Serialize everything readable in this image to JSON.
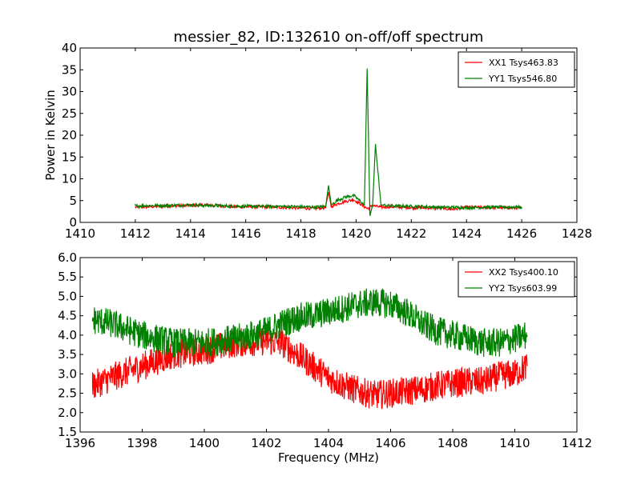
{
  "figure": {
    "title": "messier_82, ID:132610 on-off/off spectrum",
    "ylabel": "Power in Kelvin",
    "xlabel": "Frequency (MHz)"
  },
  "colors": {
    "xx": "#ff0000",
    "yy": "#008000"
  },
  "chart_data": [
    {
      "type": "line",
      "title": "messier_82, ID:132610 on-off/off spectrum",
      "xlabel": "",
      "ylabel": "Power in Kelvin",
      "xlim": [
        1410,
        1428
      ],
      "ylim": [
        0,
        40
      ],
      "xticks": [
        "1410",
        "1412",
        "1414",
        "1416",
        "1418",
        "1420",
        "1422",
        "1424",
        "1426",
        "1428"
      ],
      "yticks": [
        "0",
        "5",
        "10",
        "15",
        "20",
        "25",
        "30",
        "35",
        "40"
      ],
      "grid": false,
      "legend": "top-right",
      "series": [
        {
          "name": "XX1 Tsys463.83",
          "color": "#ff0000",
          "x": [
            1412.0,
            1413.0,
            1414.0,
            1414.8,
            1415.5,
            1416.0,
            1417.0,
            1418.0,
            1418.5,
            1418.9,
            1419.0,
            1419.1,
            1419.3,
            1419.6,
            1419.9,
            1420.1,
            1420.3,
            1420.4,
            1420.5,
            1420.6,
            1420.7,
            1420.9,
            1421.2,
            1422.0,
            1423.0,
            1423.5,
            1424.0,
            1425.0,
            1426.0
          ],
          "y": [
            3.5,
            3.7,
            3.9,
            4.0,
            3.6,
            3.6,
            3.5,
            3.3,
            3.2,
            3.4,
            7.0,
            3.6,
            4.2,
            4.8,
            5.2,
            4.5,
            3.6,
            3.2,
            3.4,
            4.0,
            3.7,
            3.5,
            3.6,
            3.4,
            3.3,
            3.0,
            3.5,
            3.4,
            3.3
          ]
        },
        {
          "name": "YY1 Tsys546.80",
          "color": "#008000",
          "x": [
            1412.0,
            1413.0,
            1414.0,
            1415.0,
            1416.0,
            1417.0,
            1418.0,
            1418.5,
            1418.9,
            1419.0,
            1419.1,
            1419.3,
            1419.6,
            1419.9,
            1420.1,
            1420.3,
            1420.4,
            1420.5,
            1420.6,
            1420.7,
            1420.9,
            1421.2,
            1422.0,
            1423.0,
            1424.0,
            1425.0,
            1426.0
          ],
          "y": [
            3.8,
            3.9,
            4.0,
            3.8,
            3.7,
            3.7,
            3.6,
            3.5,
            3.7,
            8.5,
            4.0,
            5.0,
            5.8,
            6.2,
            5.2,
            4.0,
            35.3,
            1.5,
            4.0,
            18.0,
            4.0,
            3.8,
            3.7,
            3.5,
            3.4,
            3.5,
            3.5
          ]
        }
      ]
    },
    {
      "type": "line",
      "title": "",
      "xlabel": "Frequency (MHz)",
      "ylabel": "",
      "xlim": [
        1396,
        1412
      ],
      "ylim": [
        1.5,
        6.0
      ],
      "xticks": [
        "1396",
        "1398",
        "1400",
        "1402",
        "1404",
        "1406",
        "1408",
        "1410",
        "1412"
      ],
      "yticks": [
        "1.5",
        "2.0",
        "2.5",
        "3.0",
        "3.5",
        "4.0",
        "4.5",
        "5.0",
        "5.5",
        "6.0"
      ],
      "grid": false,
      "legend": "top-right",
      "series": [
        {
          "name": "XX2 Tsys400.10",
          "color": "#ff0000",
          "x": [
            1396.4,
            1397.0,
            1398.0,
            1399.0,
            1400.0,
            1401.0,
            1402.0,
            1402.5,
            1403.0,
            1403.5,
            1404.0,
            1404.5,
            1405.0,
            1405.5,
            1406.0,
            1406.5,
            1407.0,
            1407.5,
            1408.0,
            1408.5,
            1409.0,
            1409.5,
            1410.0,
            1410.4
          ],
          "y": [
            2.7,
            2.9,
            3.2,
            3.5,
            3.6,
            3.8,
            3.85,
            3.8,
            3.5,
            3.2,
            2.9,
            2.7,
            2.55,
            2.45,
            2.5,
            2.55,
            2.6,
            2.7,
            2.75,
            2.8,
            2.8,
            2.95,
            3.0,
            3.2
          ]
        },
        {
          "name": "YY2 Tsys603.99",
          "color": "#008000",
          "x": [
            1396.4,
            1397.0,
            1398.0,
            1399.0,
            1400.0,
            1401.0,
            1402.0,
            1402.5,
            1403.0,
            1403.5,
            1404.0,
            1404.5,
            1405.0,
            1405.5,
            1406.0,
            1406.5,
            1407.0,
            1407.5,
            1408.0,
            1408.5,
            1409.0,
            1409.5,
            1410.0,
            1410.4
          ],
          "y": [
            4.4,
            4.3,
            4.0,
            3.8,
            3.8,
            3.9,
            4.1,
            4.3,
            4.45,
            4.5,
            4.6,
            4.7,
            4.8,
            4.85,
            4.8,
            4.6,
            4.3,
            4.1,
            4.0,
            3.9,
            3.8,
            3.8,
            3.9,
            4.0
          ]
        }
      ]
    }
  ]
}
